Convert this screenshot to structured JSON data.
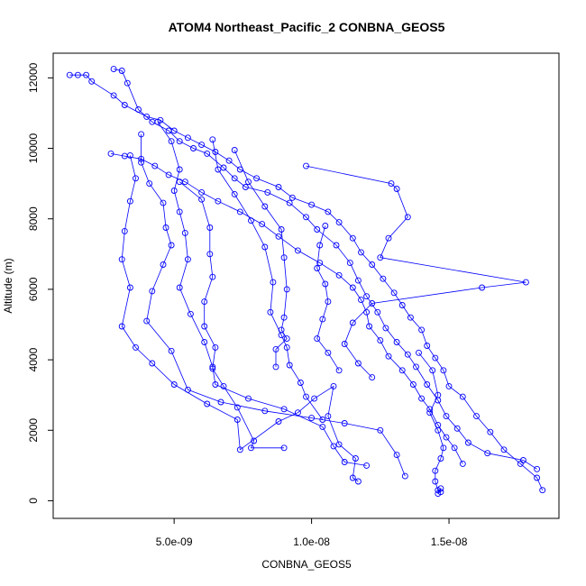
{
  "chart_data": {
    "type": "scatter",
    "title": "ATOM4 Northeast_Pacific_2 CONBNA_GEOS5",
    "xlabel": "CONBNA_GEOS5",
    "ylabel": "Altitude (m)",
    "xlim": [
      6e-10,
      1.9e-08
    ],
    "ylim": [
      -500,
      12700
    ],
    "x_ticks": [
      {
        "value": 5e-09,
        "label": "5.0e-09"
      },
      {
        "value": 1e-08,
        "label": "1.0e-08"
      },
      {
        "value": 1.5e-08,
        "label": "1.5e-08"
      }
    ],
    "y_ticks": [
      {
        "value": 0,
        "label": "0"
      },
      {
        "value": 2000,
        "label": "2000"
      },
      {
        "value": 4000,
        "label": "4000"
      },
      {
        "value": 6000,
        "label": "6000"
      },
      {
        "value": 8000,
        "label": "8000"
      },
      {
        "value": 10000,
        "label": "10000"
      },
      {
        "value": 12000,
        "label": "12000"
      }
    ],
    "grid": false,
    "marker": "open-circle",
    "connected": true,
    "series_color": "#0000ff",
    "series": [
      {
        "values": [
          [
            1.2e-09,
            12080
          ],
          [
            1.5e-09,
            12080
          ],
          [
            1.8e-09,
            12080
          ],
          [
            2e-09,
            11900
          ],
          [
            2.8e-09,
            11500
          ],
          [
            3.2e-09,
            11230
          ],
          [
            4e-09,
            10900
          ],
          [
            4.5e-09,
            10800
          ],
          [
            5e-09,
            10500
          ],
          [
            5.5e-09,
            10300
          ],
          [
            6e-09,
            10100
          ],
          [
            6.5e-09,
            9900
          ],
          [
            7e-09,
            9650
          ],
          [
            7.4e-09,
            9400
          ],
          [
            8e-09,
            9150
          ],
          [
            8.8e-09,
            8900
          ],
          [
            9.3e-09,
            8600
          ],
          [
            1e-08,
            8400
          ],
          [
            1.06e-08,
            8200
          ],
          [
            1.1e-08,
            7900
          ],
          [
            1.15e-08,
            7450
          ],
          [
            1.18e-08,
            7050
          ],
          [
            1.22e-08,
            6700
          ],
          [
            1.26e-08,
            6300
          ],
          [
            1.3e-08,
            5900
          ],
          [
            1.33e-08,
            5550
          ],
          [
            1.36e-08,
            5200
          ],
          [
            1.4e-08,
            4850
          ],
          [
            1.42e-08,
            4400
          ],
          [
            1.45e-08,
            4050
          ],
          [
            1.48e-08,
            3700
          ],
          [
            1.5e-08,
            3250
          ],
          [
            1.55e-08,
            2950
          ],
          [
            1.6e-08,
            2400
          ],
          [
            1.65e-08,
            1950
          ],
          [
            1.7e-08,
            1450
          ],
          [
            1.76e-08,
            1050
          ],
          [
            1.82e-08,
            650
          ],
          [
            1.84e-08,
            300
          ]
        ]
      },
      {
        "values": [
          [
            2.8e-09,
            12250
          ],
          [
            3.1e-09,
            12200
          ],
          [
            3.3e-09,
            11850
          ],
          [
            3.7e-09,
            11100
          ],
          [
            4.2e-09,
            10750
          ],
          [
            4.8e-09,
            10500
          ],
          [
            5.2e-09,
            10200
          ],
          [
            5.7e-09,
            10000
          ],
          [
            6.2e-09,
            9850
          ],
          [
            6.8e-09,
            9450
          ],
          [
            7.2e-09,
            9150
          ],
          [
            7.6e-09,
            8900
          ],
          [
            8.4e-09,
            8750
          ],
          [
            9.2e-09,
            8450
          ],
          [
            9.8e-09,
            8050
          ],
          [
            1.02e-08,
            7700
          ],
          [
            1.09e-08,
            7250
          ],
          [
            1.14e-08,
            6750
          ],
          [
            1.17e-08,
            6250
          ],
          [
            1.2e-08,
            5800
          ],
          [
            1.24e-08,
            5350
          ],
          [
            1.27e-08,
            4900
          ],
          [
            1.31e-08,
            4500
          ],
          [
            1.35e-08,
            4150
          ],
          [
            1.38e-08,
            3800
          ],
          [
            1.42e-08,
            3300
          ],
          [
            1.46e-08,
            2850
          ],
          [
            1.49e-08,
            2400
          ],
          [
            1.53e-08,
            2050
          ],
          [
            1.57e-08,
            1650
          ],
          [
            1.64e-08,
            1350
          ],
          [
            1.77e-08,
            1150
          ],
          [
            1.82e-08,
            900
          ]
        ]
      },
      {
        "values": [
          [
            2.7e-09,
            9850
          ],
          [
            3.2e-09,
            9780
          ],
          [
            3.8e-09,
            9700
          ],
          [
            4.3e-09,
            9500
          ],
          [
            4.8e-09,
            9250
          ],
          [
            5.4e-09,
            9050
          ],
          [
            6e-09,
            8750
          ],
          [
            6.6e-09,
            8500
          ],
          [
            7.4e-09,
            8200
          ],
          [
            8.2e-09,
            7850
          ],
          [
            8.8e-09,
            7500
          ],
          [
            9.5e-09,
            7100
          ],
          [
            1.03e-08,
            6750
          ],
          [
            1.1e-08,
            6400
          ],
          [
            1.15e-08,
            6050
          ],
          [
            1.18e-08,
            5700
          ],
          [
            1.2e-08,
            5350
          ],
          [
            1.21e-08,
            4950
          ],
          [
            1.25e-08,
            4550
          ],
          [
            1.28e-08,
            4100
          ],
          [
            1.33e-08,
            3700
          ],
          [
            1.37e-08,
            3300
          ],
          [
            1.4e-08,
            2900
          ],
          [
            1.43e-08,
            2600
          ],
          [
            1.46e-08,
            2150
          ],
          [
            1.49e-08,
            1800
          ],
          [
            1.52e-08,
            1500
          ],
          [
            1.55e-08,
            1050
          ]
        ]
      },
      {
        "values": [
          [
            3.4e-09,
            9800
          ],
          [
            3.6e-09,
            9150
          ],
          [
            3.4e-09,
            8500
          ],
          [
            3.2e-09,
            7650
          ],
          [
            3.1e-09,
            6850
          ],
          [
            3.4e-09,
            6050
          ],
          [
            3.1e-09,
            4950
          ],
          [
            3.6e-09,
            4350
          ],
          [
            4.2e-09,
            3900
          ],
          [
            5e-09,
            3300
          ],
          [
            6.2e-09,
            2750
          ],
          [
            7.3e-09,
            2300
          ],
          [
            7.4e-09,
            1450
          ],
          [
            8.8e-09,
            2250
          ],
          [
            9.5e-09,
            2500
          ],
          [
            1.01e-08,
            2900
          ],
          [
            1.08e-08,
            3250
          ],
          [
            1.06e-08,
            2400
          ],
          [
            1.1e-08,
            1600
          ],
          [
            1.16e-08,
            1200
          ],
          [
            1.15e-08,
            650
          ],
          [
            1.17e-08,
            550
          ]
        ]
      },
      {
        "values": [
          [
            3.8e-09,
            10400
          ],
          [
            3.8e-09,
            9600
          ],
          [
            4.1e-09,
            9000
          ],
          [
            4.6e-09,
            8450
          ],
          [
            4.7e-09,
            7750
          ],
          [
            4.9e-09,
            7250
          ],
          [
            4.6e-09,
            6700
          ],
          [
            4.2e-09,
            5950
          ],
          [
            4e-09,
            5100
          ],
          [
            4.9e-09,
            4250
          ],
          [
            5.5e-09,
            3150
          ],
          [
            6.7e-09,
            2800
          ],
          [
            8.3e-09,
            2550
          ],
          [
            1e-08,
            2350
          ],
          [
            1.12e-08,
            2200
          ],
          [
            1.25e-08,
            2000
          ],
          [
            1.31e-08,
            1300
          ],
          [
            1.34e-08,
            700
          ]
        ]
      },
      {
        "values": [
          [
            4.4e-09,
            10750
          ],
          [
            4.9e-09,
            10200
          ],
          [
            5.2e-09,
            9400
          ],
          [
            5e-09,
            8800
          ],
          [
            5.2e-09,
            8200
          ],
          [
            5.4e-09,
            7600
          ],
          [
            5.5e-09,
            6850
          ],
          [
            5.2e-09,
            6050
          ],
          [
            5.6e-09,
            5300
          ],
          [
            6.1e-09,
            4500
          ],
          [
            6.4e-09,
            3800
          ],
          [
            6.5e-09,
            3300
          ],
          [
            7.7e-09,
            2900
          ],
          [
            9e-09,
            2600
          ],
          [
            1.04e-08,
            2100
          ],
          [
            1.08e-08,
            1550
          ],
          [
            1.12e-08,
            1100
          ],
          [
            1.2e-08,
            1000
          ]
        ]
      },
      {
        "values": [
          [
            5.2e-09,
            9050
          ],
          [
            6e-09,
            8550
          ],
          [
            6.3e-09,
            7750
          ],
          [
            6.3e-09,
            7000
          ],
          [
            6.4e-09,
            6350
          ],
          [
            6.1e-09,
            5650
          ],
          [
            6.1e-09,
            4950
          ],
          [
            6.5e-09,
            4350
          ],
          [
            6.4e-09,
            3750
          ],
          [
            6.8e-09,
            3250
          ],
          [
            7.3e-09,
            2650
          ],
          [
            7.9e-09,
            1700
          ],
          [
            7.8e-09,
            1500
          ],
          [
            9e-09,
            1500
          ]
        ]
      },
      {
        "values": [
          [
            6.4e-09,
            10250
          ],
          [
            6.6e-09,
            9400
          ],
          [
            7.2e-09,
            8700
          ],
          [
            7.8e-09,
            7950
          ],
          [
            8.3e-09,
            7200
          ],
          [
            8.6e-09,
            6200
          ],
          [
            8.5e-09,
            5350
          ],
          [
            8.9e-09,
            4700
          ],
          [
            9.1e-09,
            4350
          ],
          [
            9.2e-09,
            3850
          ],
          [
            9.6e-09,
            3350
          ],
          [
            9.8e-09,
            2950
          ],
          [
            1.04e-08,
            2300
          ]
        ]
      },
      {
        "values": [
          [
            7.2e-09,
            9950
          ],
          [
            7.7e-09,
            9050
          ],
          [
            8.3e-09,
            8350
          ],
          [
            8.9e-09,
            7700
          ],
          [
            9e-09,
            6900
          ],
          [
            9.1e-09,
            6000
          ],
          [
            9e-09,
            5200
          ],
          [
            8.9e-09,
            4850
          ],
          [
            9.1e-09,
            4600
          ],
          [
            8.7e-09,
            4300
          ],
          [
            8.7e-09,
            3800
          ]
        ]
      },
      {
        "values": [
          [
            9.8e-09,
            9500
          ],
          [
            1.29e-08,
            9000
          ],
          [
            1.31e-08,
            8850
          ],
          [
            1.35e-08,
            8050
          ],
          [
            1.28e-08,
            7450
          ],
          [
            1.25e-08,
            6900
          ],
          [
            1.78e-08,
            6200
          ],
          [
            1.62e-08,
            6050
          ],
          [
            1.22e-08,
            5600
          ],
          [
            1.15e-08,
            5050
          ],
          [
            1.12e-08,
            4450
          ],
          [
            1.17e-08,
            3900
          ],
          [
            1.22e-08,
            3500
          ]
        ]
      },
      {
        "values": [
          [
            1.05e-08,
            7800
          ],
          [
            1.03e-08,
            7250
          ],
          [
            1.02e-08,
            6600
          ],
          [
            1.05e-08,
            6150
          ],
          [
            1.06e-08,
            5650
          ],
          [
            1.04e-08,
            5150
          ],
          [
            1.02e-08,
            4600
          ],
          [
            1.06e-08,
            4200
          ],
          [
            1.1e-08,
            3700
          ]
        ]
      },
      {
        "values": [
          [
            1.39e-08,
            4200
          ],
          [
            1.44e-08,
            3700
          ],
          [
            1.46e-08,
            3000
          ],
          [
            1.43e-08,
            2500
          ],
          [
            1.46e-08,
            2000
          ],
          [
            1.48e-08,
            1500
          ],
          [
            1.47e-08,
            1200
          ],
          [
            1.45e-08,
            850
          ],
          [
            1.45e-08,
            550
          ],
          [
            1.46e-08,
            300
          ],
          [
            1.46e-08,
            200
          ],
          [
            1.47e-08,
            350
          ],
          [
            1.47e-08,
            250
          ]
        ]
      }
    ]
  }
}
